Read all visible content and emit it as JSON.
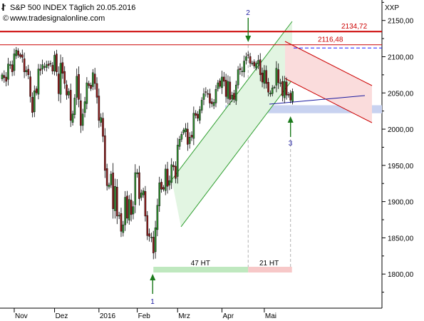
{
  "chart_data": {
    "type": "candlestick",
    "title": "S&P 500 INDEX Täglich  20.05.2016",
    "subtitle": "www.tradesignalonline.com",
    "ylabel": "XXP",
    "ylim": [
      1760,
      2170
    ],
    "y_ticks": [
      {
        "value": 1800,
        "label": "1800,00"
      },
      {
        "value": 1850,
        "label": "1850,00"
      },
      {
        "value": 1900,
        "label": "1900,00"
      },
      {
        "value": 1950,
        "label": "1950,00"
      },
      {
        "value": 2000,
        "label": "2000,00"
      },
      {
        "value": 2050,
        "label": "2050,00"
      },
      {
        "value": 2100,
        "label": "2100,00"
      },
      {
        "value": 2150,
        "label": "2150,00"
      }
    ],
    "x_ticks": [
      {
        "label": "Nov",
        "date": "2015-11-02"
      },
      {
        "label": "Dez",
        "date": "2015-12-01"
      },
      {
        "label": "2016",
        "date": "2016-01-04"
      },
      {
        "label": "Feb",
        "date": "2016-02-01"
      },
      {
        "label": "Mrz",
        "date": "2016-03-01"
      },
      {
        "label": "Apr",
        "date": "2016-04-01"
      },
      {
        "label": "Mai",
        "date": "2016-05-02"
      }
    ],
    "horizontal_lines": [
      {
        "value": 2134.72,
        "label": "2134,72",
        "color": "#cc0000",
        "width": 2
      },
      {
        "value": 2116.48,
        "label": "2116,48",
        "color": "#cc0000",
        "width": 1
      },
      {
        "value": 2112,
        "color": "#1a1aff",
        "dashed": true
      }
    ],
    "support_zone": {
      "from": 2022,
      "to": 2033,
      "color": "#c8d2f0"
    },
    "channels": [
      {
        "name": "uptrend",
        "color": "#2e9e2e",
        "fill": "#e2f5e2"
      },
      {
        "name": "downtrend",
        "color": "#cc0000",
        "fill": "#fadcdc"
      }
    ],
    "annotations": [
      {
        "text": "1",
        "color": "#1a1aa0"
      },
      {
        "text": "2",
        "color": "#1a1aa0"
      },
      {
        "text": "3",
        "color": "#1a1aa0"
      }
    ],
    "duration_bars": [
      {
        "label": "47 HT",
        "color": "#bfe8bf"
      },
      {
        "label": "21 HT",
        "color": "#f7c8c8"
      }
    ],
    "colors": {
      "up": "#2e8b2e",
      "down": "#8b1a1a",
      "wick": "#000000"
    },
    "candles": [
      {
        "d": "2015-10-23",
        "c": 2075
      },
      {
        "d": "2015-10-26",
        "c": 2071
      },
      {
        "d": "2015-10-27",
        "c": 2066
      },
      {
        "d": "2015-10-28",
        "c": 2090
      },
      {
        "d": "2015-10-29",
        "c": 2089
      },
      {
        "d": "2015-10-30",
        "c": 2079
      },
      {
        "d": "2015-11-02",
        "c": 2104
      },
      {
        "d": "2015-11-03",
        "c": 2109
      },
      {
        "d": "2015-11-04",
        "c": 2102
      },
      {
        "d": "2015-11-05",
        "c": 2100
      },
      {
        "d": "2015-11-06",
        "c": 2099
      },
      {
        "d": "2015-11-09",
        "c": 2079
      },
      {
        "d": "2015-11-10",
        "c": 2081
      },
      {
        "d": "2015-11-11",
        "c": 2075
      },
      {
        "d": "2015-11-12",
        "c": 2045
      },
      {
        "d": "2015-11-13",
        "c": 2023
      },
      {
        "d": "2015-11-16",
        "c": 2053
      },
      {
        "d": "2015-11-17",
        "c": 2050
      },
      {
        "d": "2015-11-18",
        "c": 2083
      },
      {
        "d": "2015-11-19",
        "c": 2081
      },
      {
        "d": "2015-11-20",
        "c": 2089
      },
      {
        "d": "2015-11-23",
        "c": 2086
      },
      {
        "d": "2015-11-24",
        "c": 2089
      },
      {
        "d": "2015-11-25",
        "c": 2088
      },
      {
        "d": "2015-11-27",
        "c": 2090
      },
      {
        "d": "2015-11-30",
        "c": 2080
      },
      {
        "d": "2015-12-01",
        "c": 2102
      },
      {
        "d": "2015-12-02",
        "c": 2079
      },
      {
        "d": "2015-12-03",
        "c": 2049
      },
      {
        "d": "2015-12-04",
        "c": 2091
      },
      {
        "d": "2015-12-07",
        "c": 2077
      },
      {
        "d": "2015-12-08",
        "c": 2063
      },
      {
        "d": "2015-12-09",
        "c": 2047
      },
      {
        "d": "2015-12-10",
        "c": 2052
      },
      {
        "d": "2015-12-11",
        "c": 2012
      },
      {
        "d": "2015-12-14",
        "c": 2021
      },
      {
        "d": "2015-12-15",
        "c": 2043
      },
      {
        "d": "2015-12-16",
        "c": 2073
      },
      {
        "d": "2015-12-17",
        "c": 2041
      },
      {
        "d": "2015-12-18",
        "c": 2005
      },
      {
        "d": "2015-12-21",
        "c": 2021
      },
      {
        "d": "2015-12-22",
        "c": 2038
      },
      {
        "d": "2015-12-23",
        "c": 2064
      },
      {
        "d": "2015-12-24",
        "c": 2060
      },
      {
        "d": "2015-12-28",
        "c": 2056
      },
      {
        "d": "2015-12-29",
        "c": 2078
      },
      {
        "d": "2015-12-30",
        "c": 2063
      },
      {
        "d": "2015-12-31",
        "c": 2044
      },
      {
        "d": "2016-01-04",
        "c": 2012
      },
      {
        "d": "2016-01-05",
        "c": 2016
      },
      {
        "d": "2016-01-06",
        "c": 1990
      },
      {
        "d": "2016-01-07",
        "c": 1943
      },
      {
        "d": "2016-01-08",
        "c": 1922
      },
      {
        "d": "2016-01-11",
        "c": 1923
      },
      {
        "d": "2016-01-12",
        "c": 1938
      },
      {
        "d": "2016-01-13",
        "c": 1890
      },
      {
        "d": "2016-01-14",
        "c": 1921
      },
      {
        "d": "2016-01-15",
        "c": 1880
      },
      {
        "d": "2016-01-19",
        "c": 1881
      },
      {
        "d": "2016-01-20",
        "c": 1859
      },
      {
        "d": "2016-01-21",
        "c": 1868
      },
      {
        "d": "2016-01-22",
        "c": 1906
      },
      {
        "d": "2016-01-25",
        "c": 1877
      },
      {
        "d": "2016-01-26",
        "c": 1903
      },
      {
        "d": "2016-01-27",
        "c": 1882
      },
      {
        "d": "2016-01-28",
        "c": 1893
      },
      {
        "d": "2016-01-29",
        "c": 1940
      },
      {
        "d": "2016-02-01",
        "c": 1940
      },
      {
        "d": "2016-02-02",
        "c": 1904
      },
      {
        "d": "2016-02-03",
        "c": 1912
      },
      {
        "d": "2016-02-04",
        "c": 1915
      },
      {
        "d": "2016-02-05",
        "c": 1880
      },
      {
        "d": "2016-02-08",
        "c": 1853
      },
      {
        "d": "2016-02-09",
        "c": 1852
      },
      {
        "d": "2016-02-10",
        "c": 1851
      },
      {
        "d": "2016-02-11",
        "c": 1829
      },
      {
        "d": "2016-02-12",
        "c": 1864
      },
      {
        "d": "2016-02-16",
        "c": 1895
      },
      {
        "d": "2016-02-17",
        "c": 1926
      },
      {
        "d": "2016-02-18",
        "c": 1917
      },
      {
        "d": "2016-02-19",
        "c": 1917
      },
      {
        "d": "2016-02-22",
        "c": 1945
      },
      {
        "d": "2016-02-23",
        "c": 1921
      },
      {
        "d": "2016-02-24",
        "c": 1929
      },
      {
        "d": "2016-02-25",
        "c": 1951
      },
      {
        "d": "2016-02-26",
        "c": 1948
      },
      {
        "d": "2016-02-29",
        "c": 1932
      },
      {
        "d": "2016-03-01",
        "c": 1978
      },
      {
        "d": "2016-03-02",
        "c": 1986
      },
      {
        "d": "2016-03-03",
        "c": 1993
      },
      {
        "d": "2016-03-04",
        "c": 1999
      },
      {
        "d": "2016-03-07",
        "c": 2001
      },
      {
        "d": "2016-03-08",
        "c": 1979
      },
      {
        "d": "2016-03-09",
        "c": 1989
      },
      {
        "d": "2016-03-10",
        "c": 1989
      },
      {
        "d": "2016-03-11",
        "c": 2022
      },
      {
        "d": "2016-03-14",
        "c": 2019
      },
      {
        "d": "2016-03-15",
        "c": 2015
      },
      {
        "d": "2016-03-16",
        "c": 2027
      },
      {
        "d": "2016-03-17",
        "c": 2040
      },
      {
        "d": "2016-03-18",
        "c": 2049
      },
      {
        "d": "2016-03-21",
        "c": 2051
      },
      {
        "d": "2016-03-22",
        "c": 2049
      },
      {
        "d": "2016-03-23",
        "c": 2036
      },
      {
        "d": "2016-03-24",
        "c": 2035
      },
      {
        "d": "2016-03-28",
        "c": 2037
      },
      {
        "d": "2016-03-29",
        "c": 2055
      },
      {
        "d": "2016-03-30",
        "c": 2064
      },
      {
        "d": "2016-03-31",
        "c": 2059
      },
      {
        "d": "2016-04-01",
        "c": 2072
      },
      {
        "d": "2016-04-04",
        "c": 2066
      },
      {
        "d": "2016-04-05",
        "c": 2045
      },
      {
        "d": "2016-04-06",
        "c": 2066
      },
      {
        "d": "2016-04-07",
        "c": 2041
      },
      {
        "d": "2016-04-08",
        "c": 2047
      },
      {
        "d": "2016-04-11",
        "c": 2041
      },
      {
        "d": "2016-04-12",
        "c": 2061
      },
      {
        "d": "2016-04-13",
        "c": 2082
      },
      {
        "d": "2016-04-14",
        "c": 2082
      },
      {
        "d": "2016-04-15",
        "c": 2080
      },
      {
        "d": "2016-04-18",
        "c": 2094
      },
      {
        "d": "2016-04-19",
        "c": 2100
      },
      {
        "d": "2016-04-20",
        "c": 2102
      },
      {
        "d": "2016-04-21",
        "c": 2091
      },
      {
        "d": "2016-04-22",
        "c": 2091
      },
      {
        "d": "2016-04-25",
        "c": 2087
      },
      {
        "d": "2016-04-26",
        "c": 2091
      },
      {
        "d": "2016-04-27",
        "c": 2095
      },
      {
        "d": "2016-04-28",
        "c": 2075
      },
      {
        "d": "2016-04-29",
        "c": 2065
      },
      {
        "d": "2016-05-02",
        "c": 2081
      },
      {
        "d": "2016-05-03",
        "c": 2063
      },
      {
        "d": "2016-05-04",
        "c": 2051
      },
      {
        "d": "2016-05-05",
        "c": 2050
      },
      {
        "d": "2016-05-06",
        "c": 2057
      },
      {
        "d": "2016-05-09",
        "c": 2058
      },
      {
        "d": "2016-05-10",
        "c": 2084
      },
      {
        "d": "2016-05-11",
        "c": 2064
      },
      {
        "d": "2016-05-12",
        "c": 2064
      },
      {
        "d": "2016-05-13",
        "c": 2046
      },
      {
        "d": "2016-05-16",
        "c": 2066
      },
      {
        "d": "2016-05-17",
        "c": 2047
      },
      {
        "d": "2016-05-18",
        "c": 2047
      },
      {
        "d": "2016-05-19",
        "c": 2040
      },
      {
        "d": "2016-05-20",
        "c": 2052
      }
    ]
  }
}
